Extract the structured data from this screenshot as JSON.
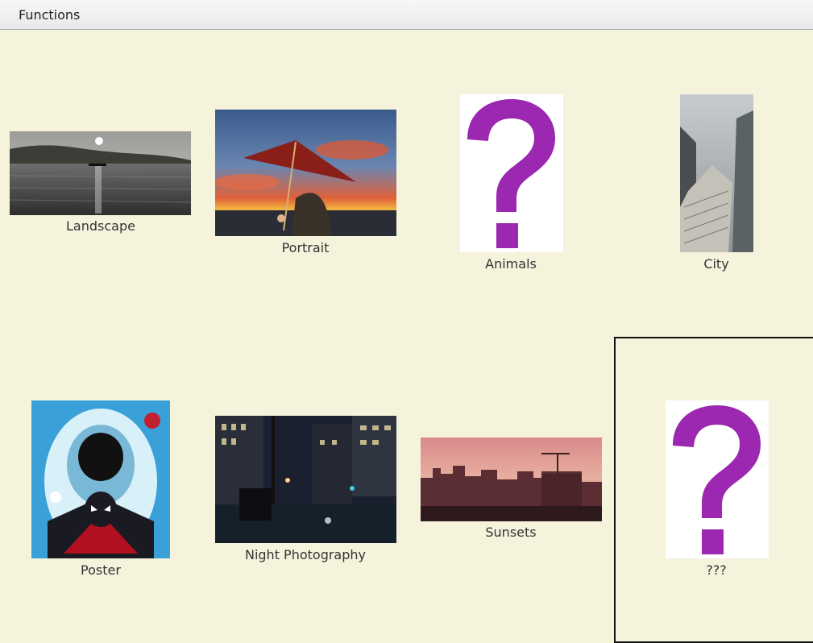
{
  "menubar": {
    "functions_label": "Functions"
  },
  "gallery": {
    "items": [
      {
        "label": "Landscape",
        "icon": "landscape-lake-photo"
      },
      {
        "label": "Portrait",
        "icon": "portrait-umbrella-photo"
      },
      {
        "label": "Animals",
        "icon": "question-mark-placeholder"
      },
      {
        "label": "City",
        "icon": "city-skyscraper-photo"
      },
      {
        "label": "Poster",
        "icon": "spider-man-poster"
      },
      {
        "label": "Night Photography",
        "icon": "night-city-photo"
      },
      {
        "label": "Sunsets",
        "icon": "sunset-skyline-photo"
      },
      {
        "label": "???",
        "icon": "question-mark-placeholder"
      }
    ]
  },
  "colors": {
    "background": "#f5f3dc",
    "placeholder_purple": "#9c27b0"
  }
}
